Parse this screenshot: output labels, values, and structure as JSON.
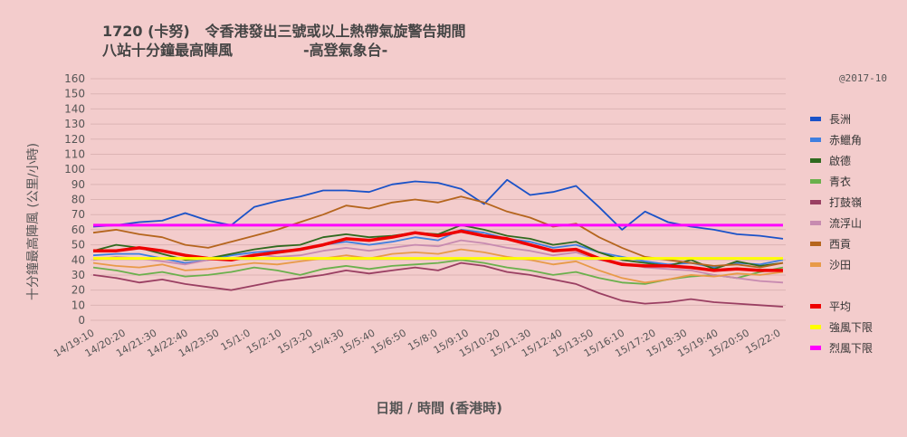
{
  "chart_data": {
    "type": "line",
    "title_line1": "1720 (卡努)   令香港發出三號或以上熱帶氣旋警告期間",
    "title_line2": "八站十分鐘最高陣風              -高登氣象台-",
    "credit": "@2017-10",
    "xlabel": "日期  /  時間  (香港時)",
    "ylabel": "十分鐘最高陣風 (公里/小時)",
    "ylim": [
      0,
      160
    ],
    "y_ticks": [
      "0",
      "10",
      "20",
      "30",
      "40",
      "50",
      "60",
      "70",
      "80",
      "90",
      "100",
      "110",
      "120",
      "130",
      "140",
      "150",
      "160"
    ],
    "x_tick_labels": [
      "14/19:10",
      "14/20:20",
      "14/21:30",
      "14/22:40",
      "14/23:50",
      "15/1:0",
      "15/2:10",
      "15/3:20",
      "15/4:30",
      "15/5:40",
      "15/6:50",
      "15/8:0",
      "15/9:10",
      "15/10:20",
      "15/11:30",
      "15/12:40",
      "15/13:50",
      "15/16:10",
      "15/17:20",
      "15/18:30",
      "15/19:40",
      "15/20:50",
      "15/22:0"
    ],
    "grid": true,
    "legend_position": "right",
    "series": [
      {
        "name": "長洲",
        "color": "#1a52c8",
        "points": [
          [
            0,
            62
          ],
          [
            10,
            63
          ],
          [
            20,
            65
          ],
          [
            30,
            66
          ],
          [
            40,
            71
          ],
          [
            50,
            66
          ],
          [
            60,
            63
          ],
          [
            70,
            75
          ],
          [
            80,
            79
          ],
          [
            90,
            82
          ],
          [
            100,
            86
          ],
          [
            110,
            86
          ],
          [
            120,
            85
          ],
          [
            130,
            90
          ],
          [
            140,
            92
          ],
          [
            150,
            91
          ],
          [
            160,
            87
          ],
          [
            170,
            77
          ],
          [
            180,
            93
          ],
          [
            190,
            83
          ],
          [
            200,
            85
          ],
          [
            210,
            89
          ],
          [
            220,
            75
          ],
          [
            230,
            60
          ],
          [
            240,
            72
          ],
          [
            250,
            65
          ],
          [
            260,
            62
          ],
          [
            270,
            60
          ],
          [
            280,
            57
          ],
          [
            290,
            56
          ],
          [
            300,
            54
          ]
        ]
      },
      {
        "name": "赤鱲角",
        "color": "#3f7fe0",
        "points": [
          [
            0,
            43
          ],
          [
            10,
            44
          ],
          [
            20,
            44
          ],
          [
            30,
            41
          ],
          [
            40,
            38
          ],
          [
            50,
            40
          ],
          [
            60,
            43
          ],
          [
            70,
            45
          ],
          [
            80,
            46
          ],
          [
            90,
            47
          ],
          [
            100,
            50
          ],
          [
            110,
            52
          ],
          [
            120,
            50
          ],
          [
            130,
            52
          ],
          [
            140,
            55
          ],
          [
            150,
            53
          ],
          [
            160,
            60
          ],
          [
            170,
            58
          ],
          [
            180,
            54
          ],
          [
            190,
            52
          ],
          [
            200,
            48
          ],
          [
            210,
            50
          ],
          [
            220,
            45
          ],
          [
            230,
            42
          ],
          [
            240,
            39
          ],
          [
            250,
            37
          ],
          [
            260,
            38
          ],
          [
            270,
            35
          ],
          [
            280,
            38
          ],
          [
            290,
            37
          ],
          [
            300,
            40
          ]
        ]
      },
      {
        "name": "啟德",
        "color": "#2f6a1f",
        "points": [
          [
            0,
            46
          ],
          [
            10,
            50
          ],
          [
            20,
            48
          ],
          [
            30,
            44
          ],
          [
            40,
            40
          ],
          [
            50,
            41
          ],
          [
            60,
            44
          ],
          [
            70,
            47
          ],
          [
            80,
            49
          ],
          [
            90,
            50
          ],
          [
            100,
            55
          ],
          [
            110,
            57
          ],
          [
            120,
            55
          ],
          [
            130,
            56
          ],
          [
            140,
            58
          ],
          [
            150,
            57
          ],
          [
            160,
            63
          ],
          [
            170,
            60
          ],
          [
            180,
            56
          ],
          [
            190,
            54
          ],
          [
            200,
            50
          ],
          [
            210,
            52
          ],
          [
            220,
            45
          ],
          [
            230,
            40
          ],
          [
            240,
            38
          ],
          [
            250,
            36
          ],
          [
            260,
            40
          ],
          [
            270,
            34
          ],
          [
            280,
            39
          ],
          [
            290,
            36
          ],
          [
            300,
            38
          ]
        ]
      },
      {
        "name": "青衣",
        "color": "#6ab04c",
        "points": [
          [
            0,
            35
          ],
          [
            10,
            33
          ],
          [
            20,
            30
          ],
          [
            30,
            32
          ],
          [
            40,
            29
          ],
          [
            50,
            30
          ],
          [
            60,
            32
          ],
          [
            70,
            35
          ],
          [
            80,
            33
          ],
          [
            90,
            30
          ],
          [
            100,
            34
          ],
          [
            110,
            36
          ],
          [
            120,
            34
          ],
          [
            130,
            36
          ],
          [
            140,
            37
          ],
          [
            150,
            38
          ],
          [
            160,
            40
          ],
          [
            170,
            38
          ],
          [
            180,
            35
          ],
          [
            190,
            33
          ],
          [
            200,
            30
          ],
          [
            210,
            32
          ],
          [
            220,
            28
          ],
          [
            230,
            25
          ],
          [
            240,
            24
          ],
          [
            250,
            27
          ],
          [
            260,
            29
          ],
          [
            270,
            30
          ],
          [
            280,
            28
          ],
          [
            290,
            32
          ],
          [
            300,
            35
          ]
        ]
      },
      {
        "name": "打鼓嶺",
        "color": "#9a3f62",
        "points": [
          [
            0,
            30
          ],
          [
            10,
            28
          ],
          [
            20,
            25
          ],
          [
            30,
            27
          ],
          [
            40,
            24
          ],
          [
            50,
            22
          ],
          [
            60,
            20
          ],
          [
            70,
            23
          ],
          [
            80,
            26
          ],
          [
            90,
            28
          ],
          [
            100,
            30
          ],
          [
            110,
            33
          ],
          [
            120,
            31
          ],
          [
            130,
            33
          ],
          [
            140,
            35
          ],
          [
            150,
            33
          ],
          [
            160,
            38
          ],
          [
            170,
            36
          ],
          [
            180,
            32
          ],
          [
            190,
            30
          ],
          [
            200,
            27
          ],
          [
            210,
            24
          ],
          [
            220,
            18
          ],
          [
            230,
            13
          ],
          [
            240,
            11
          ],
          [
            250,
            12
          ],
          [
            260,
            14
          ],
          [
            270,
            12
          ],
          [
            280,
            11
          ],
          [
            290,
            10
          ],
          [
            300,
            9
          ]
        ]
      },
      {
        "name": "流浮山",
        "color": "#c78ab0",
        "points": [
          [
            0,
            40
          ],
          [
            10,
            42
          ],
          [
            20,
            41
          ],
          [
            30,
            39
          ],
          [
            40,
            37
          ],
          [
            50,
            40
          ],
          [
            60,
            41
          ],
          [
            70,
            44
          ],
          [
            80,
            42
          ],
          [
            90,
            43
          ],
          [
            100,
            46
          ],
          [
            110,
            48
          ],
          [
            120,
            46
          ],
          [
            130,
            48
          ],
          [
            140,
            50
          ],
          [
            150,
            49
          ],
          [
            160,
            53
          ],
          [
            170,
            51
          ],
          [
            180,
            48
          ],
          [
            190,
            46
          ],
          [
            200,
            43
          ],
          [
            210,
            45
          ],
          [
            220,
            40
          ],
          [
            230,
            38
          ],
          [
            240,
            35
          ],
          [
            250,
            34
          ],
          [
            260,
            33
          ],
          [
            270,
            30
          ],
          [
            280,
            28
          ],
          [
            290,
            26
          ],
          [
            300,
            25
          ]
        ]
      },
      {
        "name": "西貢",
        "color": "#b5651d",
        "points": [
          [
            0,
            58
          ],
          [
            10,
            60
          ],
          [
            20,
            57
          ],
          [
            30,
            55
          ],
          [
            40,
            50
          ],
          [
            50,
            48
          ],
          [
            60,
            52
          ],
          [
            70,
            56
          ],
          [
            80,
            60
          ],
          [
            90,
            65
          ],
          [
            100,
            70
          ],
          [
            110,
            76
          ],
          [
            120,
            74
          ],
          [
            130,
            78
          ],
          [
            140,
            80
          ],
          [
            150,
            78
          ],
          [
            160,
            82
          ],
          [
            170,
            78
          ],
          [
            180,
            72
          ],
          [
            190,
            68
          ],
          [
            200,
            62
          ],
          [
            210,
            64
          ],
          [
            220,
            55
          ],
          [
            230,
            48
          ],
          [
            240,
            42
          ],
          [
            250,
            40
          ],
          [
            260,
            38
          ],
          [
            270,
            36
          ],
          [
            280,
            37
          ],
          [
            290,
            35
          ],
          [
            300,
            38
          ]
        ]
      },
      {
        "name": "沙田",
        "color": "#e89a48",
        "points": [
          [
            0,
            38
          ],
          [
            10,
            36
          ],
          [
            20,
            35
          ],
          [
            30,
            37
          ],
          [
            40,
            33
          ],
          [
            50,
            34
          ],
          [
            60,
            36
          ],
          [
            70,
            38
          ],
          [
            80,
            37
          ],
          [
            90,
            39
          ],
          [
            100,
            41
          ],
          [
            110,
            43
          ],
          [
            120,
            41
          ],
          [
            130,
            44
          ],
          [
            140,
            45
          ],
          [
            150,
            44
          ],
          [
            160,
            47
          ],
          [
            170,
            45
          ],
          [
            180,
            42
          ],
          [
            190,
            40
          ],
          [
            200,
            37
          ],
          [
            210,
            39
          ],
          [
            220,
            33
          ],
          [
            230,
            28
          ],
          [
            240,
            25
          ],
          [
            250,
            27
          ],
          [
            260,
            30
          ],
          [
            270,
            29
          ],
          [
            280,
            31
          ],
          [
            290,
            30
          ],
          [
            300,
            32
          ]
        ]
      },
      {
        "name": "平均",
        "color": "#ee0000",
        "points": [
          [
            0,
            46
          ],
          [
            10,
            46
          ],
          [
            20,
            48
          ],
          [
            30,
            46
          ],
          [
            40,
            43
          ],
          [
            50,
            41
          ],
          [
            60,
            40
          ],
          [
            70,
            43
          ],
          [
            80,
            45
          ],
          [
            90,
            47
          ],
          [
            100,
            50
          ],
          [
            110,
            54
          ],
          [
            120,
            53
          ],
          [
            130,
            55
          ],
          [
            140,
            58
          ],
          [
            150,
            56
          ],
          [
            160,
            59
          ],
          [
            170,
            56
          ],
          [
            180,
            54
          ],
          [
            190,
            50
          ],
          [
            200,
            46
          ],
          [
            210,
            47
          ],
          [
            220,
            41
          ],
          [
            230,
            37
          ],
          [
            240,
            36
          ],
          [
            250,
            36
          ],
          [
            260,
            35
          ],
          [
            270,
            33
          ],
          [
            280,
            34
          ],
          [
            290,
            33
          ],
          [
            300,
            33
          ]
        ]
      },
      {
        "name": "強風下限",
        "color": "#ffff00",
        "points": [
          [
            0,
            41
          ],
          [
            300,
            41
          ]
        ]
      },
      {
        "name": "烈風下限",
        "color": "#ff00ff",
        "points": [
          [
            0,
            63
          ],
          [
            300,
            63
          ]
        ]
      }
    ]
  }
}
